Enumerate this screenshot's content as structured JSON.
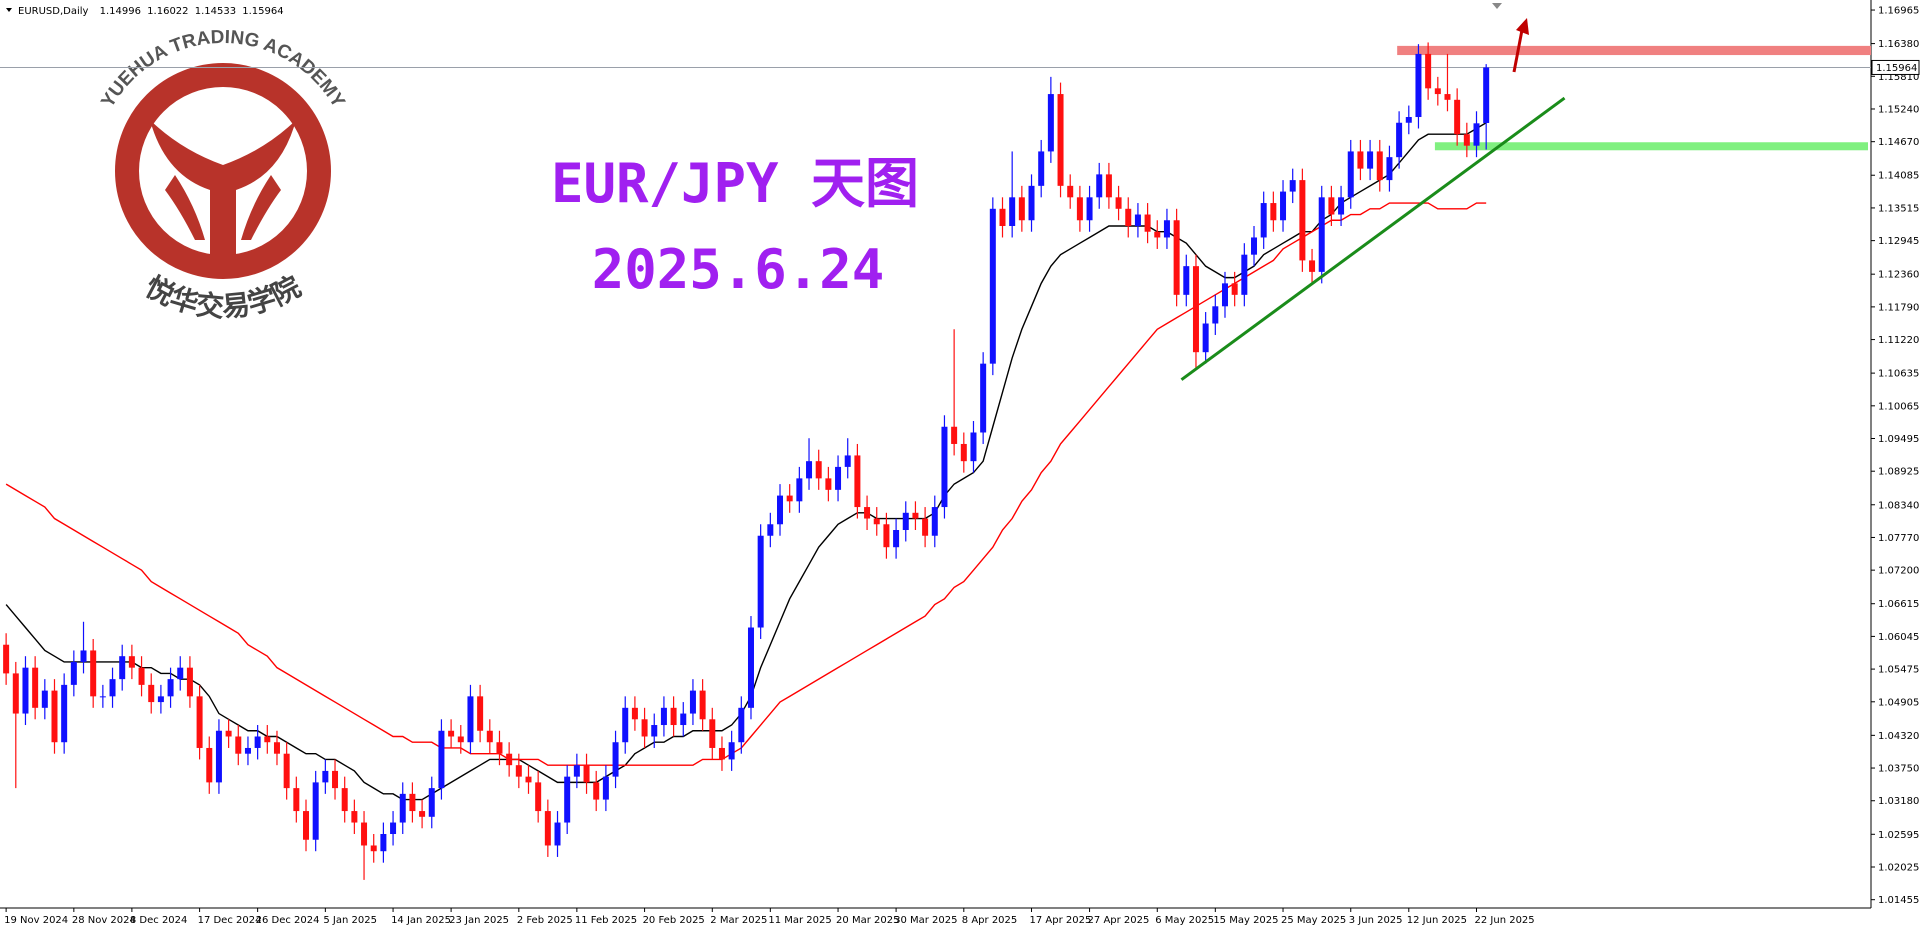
{
  "chart_data": {
    "type": "candlestick",
    "symbol": "EURUSD,Daily",
    "categories": [
      "19 Nov 2024",
      null,
      null,
      null,
      null,
      null,
      null,
      "28 Nov 2024",
      null,
      null,
      null,
      null,
      null,
      "8 Dec 2024",
      null,
      null,
      null,
      null,
      null,
      null,
      "17 Dec 2024",
      null,
      null,
      null,
      null,
      null,
      "26 Dec 2024",
      null,
      null,
      null,
      null,
      null,
      null,
      "5 Jan 2025",
      null,
      null,
      null,
      null,
      null,
      null,
      "14 Jan 2025",
      null,
      null,
      null,
      null,
      null,
      "23 Jan 2025",
      null,
      null,
      null,
      null,
      null,
      null,
      "2 Feb 2025",
      null,
      null,
      null,
      null,
      null,
      "11 Feb 2025",
      null,
      null,
      null,
      null,
      null,
      null,
      "20 Feb 2025",
      null,
      null,
      null,
      null,
      null,
      null,
      "2 Mar 2025",
      null,
      null,
      null,
      null,
      null,
      "11 Mar 2025",
      null,
      null,
      null,
      null,
      null,
      null,
      "20 Mar 2025",
      null,
      null,
      null,
      null,
      null,
      "30 Mar 2025",
      null,
      null,
      null,
      null,
      null,
      null,
      "8 Apr 2025",
      null,
      null,
      null,
      null,
      null,
      null,
      "17 Apr 2025",
      null,
      null,
      null,
      null,
      null,
      "27 Apr 2025",
      null,
      null,
      null,
      null,
      null,
      null,
      "6 May 2025",
      null,
      null,
      null,
      null,
      null,
      "15 May 2025",
      null,
      null,
      null,
      null,
      null,
      null,
      "25 May 2025",
      null,
      null,
      null,
      null,
      null,
      null,
      "3 Jun 2025",
      null,
      null,
      null,
      null,
      null,
      "12 Jun 2025",
      null,
      null,
      null,
      null,
      null,
      null,
      "22 Jun 2025",
      null
    ],
    "open": [
      1.059,
      1.054,
      1.047,
      1.055,
      1.048,
      1.051,
      1.042,
      1.052,
      1.056,
      1.058,
      1.05,
      1.05,
      1.053,
      1.057,
      1.055,
      1.052,
      1.049,
      1.05,
      1.053,
      1.055,
      1.05,
      1.041,
      1.035,
      1.044,
      1.043,
      1.04,
      1.041,
      1.043,
      1.042,
      1.04,
      1.034,
      1.03,
      1.025,
      1.035,
      1.037,
      1.034,
      1.03,
      1.028,
      1.024,
      1.023,
      1.026,
      1.028,
      1.033,
      1.03,
      1.029,
      1.034,
      1.044,
      1.043,
      1.042,
      1.05,
      1.044,
      1.042,
      1.04,
      1.038,
      1.036,
      1.035,
      1.03,
      1.024,
      1.028,
      1.036,
      1.038,
      1.035,
      1.032,
      1.036,
      1.042,
      1.048,
      1.046,
      1.043,
      1.045,
      1.048,
      1.045,
      1.047,
      1.051,
      1.046,
      1.041,
      1.039,
      1.042,
      1.048,
      1.062,
      1.078,
      1.08,
      1.085,
      1.084,
      1.088,
      1.091,
      1.088,
      1.086,
      1.09,
      1.092,
      1.083,
      1.081,
      1.08,
      1.076,
      1.079,
      1.082,
      1.081,
      1.078,
      1.083,
      1.097,
      1.094,
      1.091,
      1.096,
      1.108,
      1.135,
      1.132,
      1.137,
      1.133,
      1.139,
      1.145,
      1.155,
      1.139,
      1.137,
      1.133,
      1.137,
      1.141,
      1.137,
      1.135,
      1.132,
      1.134,
      1.131,
      1.13,
      1.133,
      1.12,
      1.125,
      1.11,
      1.115,
      1.118,
      1.122,
      1.12,
      1.127,
      1.13,
      1.136,
      1.133,
      1.138,
      1.14,
      1.126,
      1.124,
      1.137,
      1.134,
      1.137,
      1.145,
      1.142,
      1.145,
      1.14,
      1.144,
      1.15,
      1.151,
      1.162,
      1.156,
      1.155,
      1.154,
      1.148,
      1.146,
      1.14996
    ],
    "high": [
      1.061,
      1.056,
      1.057,
      1.057,
      1.053,
      1.053,
      1.054,
      1.058,
      1.063,
      1.06,
      1.052,
      1.055,
      1.059,
      1.059,
      1.057,
      1.054,
      1.052,
      1.055,
      1.057,
      1.057,
      1.052,
      1.043,
      1.046,
      1.046,
      1.045,
      1.043,
      1.045,
      1.045,
      1.044,
      1.042,
      1.036,
      1.032,
      1.037,
      1.039,
      1.039,
      1.036,
      1.032,
      1.03,
      1.026,
      1.028,
      1.03,
      1.035,
      1.035,
      1.032,
      1.036,
      1.046,
      1.046,
      1.045,
      1.052,
      1.052,
      1.046,
      1.044,
      1.042,
      1.04,
      1.038,
      1.037,
      1.032,
      1.03,
      1.038,
      1.04,
      1.04,
      1.037,
      1.038,
      1.044,
      1.05,
      1.05,
      1.048,
      1.047,
      1.05,
      1.05,
      1.049,
      1.053,
      1.053,
      1.048,
      1.043,
      1.044,
      1.05,
      1.064,
      1.08,
      1.082,
      1.087,
      1.087,
      1.09,
      1.095,
      1.093,
      1.09,
      1.092,
      1.095,
      1.094,
      1.085,
      1.083,
      1.082,
      1.081,
      1.084,
      1.084,
      1.083,
      1.085,
      1.099,
      1.114,
      1.096,
      1.098,
      1.11,
      1.137,
      1.137,
      1.145,
      1.139,
      1.141,
      1.147,
      1.158,
      1.157,
      1.141,
      1.139,
      1.139,
      1.143,
      1.143,
      1.139,
      1.137,
      1.136,
      1.136,
      1.133,
      1.135,
      1.135,
      1.127,
      1.127,
      1.117,
      1.12,
      1.124,
      1.124,
      1.129,
      1.132,
      1.138,
      1.138,
      1.14,
      1.142,
      1.142,
      1.128,
      1.139,
      1.139,
      1.139,
      1.147,
      1.147,
      1.147,
      1.147,
      1.146,
      1.152,
      1.153,
      1.1637,
      1.164,
      1.158,
      1.162,
      1.156,
      1.15,
      1.152,
      1.16022
    ],
    "low": [
      1.052,
      1.034,
      1.045,
      1.046,
      1.046,
      1.04,
      1.04,
      1.05,
      1.054,
      1.048,
      1.048,
      1.048,
      1.051,
      1.053,
      1.05,
      1.047,
      1.047,
      1.048,
      1.051,
      1.048,
      1.039,
      1.033,
      1.033,
      1.041,
      1.038,
      1.038,
      1.039,
      1.04,
      1.038,
      1.032,
      1.028,
      1.023,
      1.023,
      1.033,
      1.032,
      1.028,
      1.026,
      1.018,
      1.021,
      1.021,
      1.024,
      1.026,
      1.028,
      1.027,
      1.027,
      1.032,
      1.041,
      1.04,
      1.04,
      1.042,
      1.04,
      1.038,
      1.036,
      1.034,
      1.033,
      1.028,
      1.022,
      1.022,
      1.026,
      1.034,
      1.033,
      1.03,
      1.03,
      1.034,
      1.04,
      1.044,
      1.041,
      1.041,
      1.043,
      1.043,
      1.043,
      1.045,
      1.044,
      1.039,
      1.037,
      1.037,
      1.04,
      1.046,
      1.06,
      1.076,
      1.078,
      1.082,
      1.082,
      1.086,
      1.086,
      1.084,
      1.084,
      1.088,
      1.081,
      1.079,
      1.078,
      1.074,
      1.074,
      1.077,
      1.079,
      1.076,
      1.076,
      1.081,
      1.092,
      1.089,
      1.089,
      1.094,
      1.106,
      1.13,
      1.13,
      1.131,
      1.131,
      1.137,
      1.143,
      1.137,
      1.135,
      1.131,
      1.131,
      1.135,
      1.135,
      1.133,
      1.13,
      1.13,
      1.129,
      1.128,
      1.128,
      1.118,
      1.118,
      1.107,
      1.108,
      1.113,
      1.116,
      1.118,
      1.118,
      1.125,
      1.128,
      1.131,
      1.131,
      1.136,
      1.124,
      1.122,
      1.122,
      1.132,
      1.132,
      1.135,
      1.14,
      1.14,
      1.138,
      1.138,
      1.142,
      1.148,
      1.149,
      1.154,
      1.153,
      1.152,
      1.146,
      1.144,
      1.144,
      1.14533
    ],
    "close": [
      1.054,
      1.047,
      1.055,
      1.048,
      1.051,
      1.042,
      1.052,
      1.056,
      1.058,
      1.05,
      1.05,
      1.053,
      1.057,
      1.055,
      1.052,
      1.049,
      1.05,
      1.053,
      1.055,
      1.05,
      1.041,
      1.035,
      1.044,
      1.043,
      1.04,
      1.041,
      1.043,
      1.042,
      1.04,
      1.034,
      1.03,
      1.025,
      1.035,
      1.037,
      1.034,
      1.03,
      1.028,
      1.024,
      1.023,
      1.026,
      1.028,
      1.033,
      1.03,
      1.029,
      1.034,
      1.044,
      1.043,
      1.042,
      1.05,
      1.044,
      1.042,
      1.04,
      1.038,
      1.036,
      1.035,
      1.03,
      1.024,
      1.028,
      1.036,
      1.038,
      1.035,
      1.032,
      1.036,
      1.042,
      1.048,
      1.046,
      1.043,
      1.045,
      1.048,
      1.045,
      1.047,
      1.051,
      1.046,
      1.041,
      1.039,
      1.042,
      1.048,
      1.062,
      1.078,
      1.08,
      1.085,
      1.084,
      1.088,
      1.091,
      1.088,
      1.086,
      1.09,
      1.092,
      1.083,
      1.081,
      1.08,
      1.076,
      1.079,
      1.082,
      1.081,
      1.078,
      1.083,
      1.097,
      1.094,
      1.091,
      1.096,
      1.108,
      1.135,
      1.132,
      1.137,
      1.133,
      1.139,
      1.145,
      1.155,
      1.139,
      1.137,
      1.133,
      1.137,
      1.141,
      1.137,
      1.135,
      1.132,
      1.134,
      1.131,
      1.13,
      1.133,
      1.12,
      1.125,
      1.11,
      1.115,
      1.118,
      1.122,
      1.12,
      1.127,
      1.13,
      1.136,
      1.133,
      1.138,
      1.14,
      1.126,
      1.124,
      1.137,
      1.134,
      1.137,
      1.145,
      1.142,
      1.145,
      1.14,
      1.144,
      1.15,
      1.151,
      1.162,
      1.156,
      1.155,
      1.154,
      1.148,
      1.146,
      1.1499,
      1.15964
    ],
    "colors": {
      "up": "#1010ff",
      "down": "#ff1010"
    },
    "moving_averages": [
      {
        "color": "#000000",
        "values": [
          1.066,
          1.064,
          1.062,
          1.06,
          1.058,
          1.057,
          1.056,
          1.056,
          1.056,
          1.056,
          1.056,
          1.056,
          1.056,
          1.056,
          1.055,
          1.055,
          1.054,
          1.054,
          1.053,
          1.053,
          1.052,
          1.05,
          1.047,
          1.046,
          1.045,
          1.044,
          1.044,
          1.043,
          1.043,
          1.042,
          1.041,
          1.04,
          1.04,
          1.039,
          1.039,
          1.038,
          1.037,
          1.035,
          1.034,
          1.033,
          1.033,
          1.032,
          1.032,
          1.032,
          1.033,
          1.034,
          1.035,
          1.036,
          1.037,
          1.038,
          1.039,
          1.039,
          1.039,
          1.039,
          1.038,
          1.037,
          1.036,
          1.035,
          1.035,
          1.035,
          1.035,
          1.035,
          1.036,
          1.037,
          1.038,
          1.04,
          1.041,
          1.042,
          1.042,
          1.043,
          1.043,
          1.044,
          1.044,
          1.044,
          1.044,
          1.045,
          1.047,
          1.05,
          1.055,
          1.059,
          1.063,
          1.067,
          1.07,
          1.073,
          1.076,
          1.078,
          1.08,
          1.081,
          1.082,
          1.082,
          1.081,
          1.081,
          1.081,
          1.081,
          1.081,
          1.081,
          1.082,
          1.085,
          1.087,
          1.088,
          1.089,
          1.091,
          1.097,
          1.103,
          1.109,
          1.114,
          1.118,
          1.122,
          1.125,
          1.127,
          1.128,
          1.129,
          1.13,
          1.131,
          1.132,
          1.132,
          1.132,
          1.132,
          1.132,
          1.131,
          1.131,
          1.13,
          1.129,
          1.127,
          1.125,
          1.124,
          1.123,
          1.123,
          1.124,
          1.125,
          1.127,
          1.128,
          1.129,
          1.13,
          1.131,
          1.131,
          1.133,
          1.134,
          1.136,
          1.137,
          1.138,
          1.139,
          1.14,
          1.141,
          1.143,
          1.145,
          1.147,
          1.148,
          1.148,
          1.148,
          1.148,
          1.148,
          1.149,
          1.15
        ]
      },
      {
        "color": "#ff0000",
        "values": [
          1.087,
          1.086,
          1.085,
          1.084,
          1.083,
          1.081,
          1.08,
          1.079,
          1.078,
          1.077,
          1.076,
          1.075,
          1.074,
          1.073,
          1.072,
          1.07,
          1.069,
          1.068,
          1.067,
          1.066,
          1.065,
          1.064,
          1.063,
          1.062,
          1.061,
          1.059,
          1.058,
          1.057,
          1.055,
          1.054,
          1.053,
          1.052,
          1.051,
          1.05,
          1.049,
          1.048,
          1.047,
          1.046,
          1.045,
          1.044,
          1.043,
          1.043,
          1.042,
          1.042,
          1.042,
          1.041,
          1.041,
          1.041,
          1.04,
          1.04,
          1.04,
          1.04,
          1.039,
          1.039,
          1.039,
          1.039,
          1.038,
          1.038,
          1.038,
          1.038,
          1.038,
          1.038,
          1.038,
          1.038,
          1.038,
          1.038,
          1.038,
          1.038,
          1.038,
          1.038,
          1.038,
          1.038,
          1.039,
          1.039,
          1.039,
          1.04,
          1.041,
          1.043,
          1.045,
          1.047,
          1.049,
          1.05,
          1.051,
          1.052,
          1.053,
          1.054,
          1.055,
          1.056,
          1.057,
          1.058,
          1.059,
          1.06,
          1.061,
          1.062,
          1.063,
          1.064,
          1.066,
          1.067,
          1.069,
          1.07,
          1.072,
          1.074,
          1.076,
          1.079,
          1.081,
          1.084,
          1.086,
          1.089,
          1.091,
          1.094,
          1.096,
          1.098,
          1.1,
          1.102,
          1.104,
          1.106,
          1.108,
          1.11,
          1.112,
          1.114,
          1.115,
          1.116,
          1.117,
          1.118,
          1.119,
          1.12,
          1.121,
          1.122,
          1.123,
          1.124,
          1.125,
          1.126,
          1.128,
          1.129,
          1.13,
          1.131,
          1.132,
          1.133,
          1.133,
          1.134,
          1.134,
          1.135,
          1.135,
          1.136,
          1.136,
          1.136,
          1.136,
          1.136,
          1.135,
          1.135,
          1.135,
          1.135,
          1.136,
          1.136
        ]
      }
    ],
    "zones": [
      {
        "color": "#f08080",
        "range": [
          1.1618,
          1.1634
        ]
      },
      {
        "color": "#80f080",
        "range": [
          1.1452,
          1.1466
        ]
      }
    ],
    "trendline": {
      "color": "#1a8c1a",
      "values": [
        1.1052,
        1.1543
      ]
    },
    "ylim": [
      1.0131,
      1.1714
    ],
    "yticks": [
      1.01455,
      1.02025,
      1.02595,
      {
        "value": 1.0318,
        "label": "1.03180"
      },
      {
        "value": 1.0375,
        "label": "1.03750"
      },
      {
        "value": 1.0432,
        "label": "1.04320"
      },
      1.04905,
      1.05475,
      1.06045,
      1.06615,
      {
        "value": 1.072,
        "label": "1.07200"
      },
      {
        "value": 1.0777,
        "label": "1.07770"
      },
      {
        "value": 1.0834,
        "label": "1.08340"
      },
      1.08925,
      1.09495,
      1.10065,
      1.10635,
      {
        "value": 1.1122,
        "label": "1.11220"
      },
      {
        "value": 1.1179,
        "label": "1.11790"
      },
      {
        "value": 1.1236,
        "label": "1.12360"
      },
      1.12945,
      1.13515,
      1.14085,
      {
        "value": 1.1467,
        "label": "1.14670"
      },
      {
        "value": 1.1524,
        "label": "1.15240"
      },
      {
        "value": 1.1581,
        "label": "1.15810"
      },
      {
        "value": 1.1638,
        "label": "1.16380"
      },
      1.16965
    ],
    "grid": false,
    "annotations": [
      "EUR/JPY 天图",
      "2025.6.24"
    ],
    "logo": {
      "top_text": "YUEHUA TRADING ACADEMY",
      "bottom_text": "悦华交易学院"
    }
  }
}
